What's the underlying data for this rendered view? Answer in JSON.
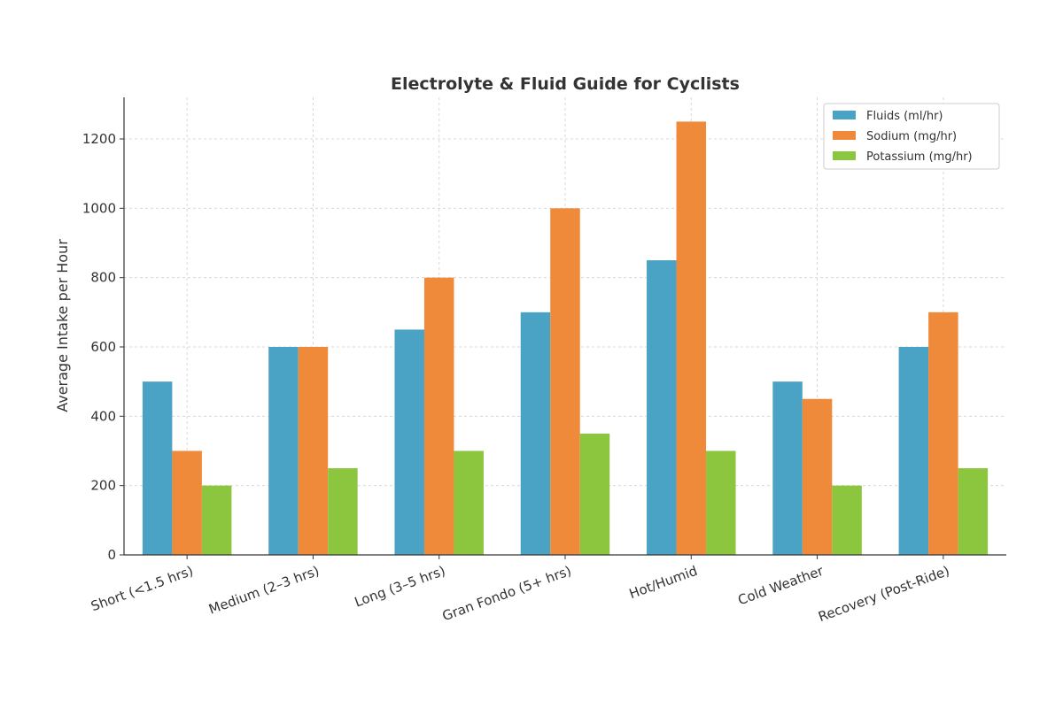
{
  "chart_data": {
    "type": "bar",
    "title": "Electrolyte & Fluid Guide for Cyclists",
    "xlabel": "",
    "ylabel": "Average Intake per Hour",
    "ylim": [
      0,
      1320
    ],
    "yticks": [
      0,
      200,
      400,
      600,
      800,
      1000,
      1200
    ],
    "grid": true,
    "legend_position": "top-right",
    "categories": [
      "Short (<1.5 hrs)",
      "Medium (2–3 hrs)",
      "Long (3–5 hrs)",
      "Gran Fondo (5+ hrs)",
      "Hot/Humid",
      "Cold Weather",
      "Recovery (Post-Ride)"
    ],
    "series": [
      {
        "name": "Fluids (ml/hr)",
        "color": "#4aa3c4",
        "values": [
          500,
          600,
          650,
          700,
          850,
          500,
          600
        ]
      },
      {
        "name": "Sodium (mg/hr)",
        "color": "#ee8a3a",
        "values": [
          300,
          600,
          800,
          1000,
          1250,
          450,
          700
        ]
      },
      {
        "name": "Potassium (mg/hr)",
        "color": "#8cc63f",
        "values": [
          200,
          250,
          300,
          350,
          300,
          200,
          250
        ]
      }
    ]
  }
}
